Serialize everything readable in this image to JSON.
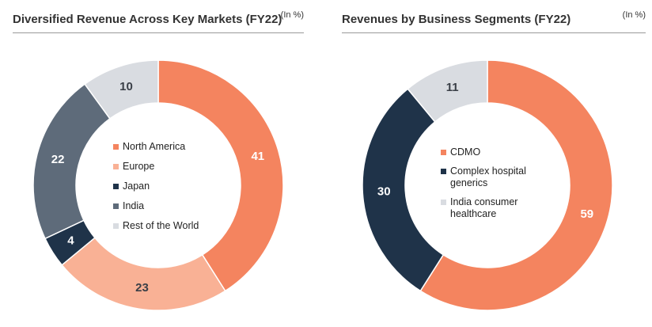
{
  "colors": {
    "orange": "#F4845F",
    "peach": "#F9B195",
    "navy": "#1F3349",
    "slate": "#5E6B7A",
    "light_gray": "#D9DCE1"
  },
  "chart_data": [
    {
      "type": "pie",
      "donut": true,
      "title": "Diversified Revenue Across Key Markets (FY22)",
      "unit": "(In %)",
      "legend_position": "center",
      "slices": [
        {
          "label": "North America",
          "value": 41,
          "color": "#F4845F",
          "label_color": "#ffffff"
        },
        {
          "label": "Europe",
          "value": 23,
          "color": "#F9B195",
          "label_color": "#3a3f47"
        },
        {
          "label": "Japan",
          "value": 4,
          "color": "#1F3349",
          "label_color": "#ffffff"
        },
        {
          "label": "India",
          "value": 22,
          "color": "#5E6B7A",
          "label_color": "#ffffff"
        },
        {
          "label": "Rest of the World",
          "value": 10,
          "color": "#D9DCE1",
          "label_color": "#3a3f47"
        }
      ]
    },
    {
      "type": "pie",
      "donut": true,
      "title": "Revenues by Business Segments (FY22)",
      "unit": "(In %)",
      "legend_position": "center",
      "slices": [
        {
          "label": "CDMO",
          "value": 59,
          "color": "#F4845F",
          "label_color": "#ffffff"
        },
        {
          "label": "Complex hospital generics",
          "value": 30,
          "color": "#1F3349",
          "label_color": "#ffffff"
        },
        {
          "label": "India consumer healthcare",
          "value": 11,
          "color": "#D9DCE1",
          "label_color": "#3a3f47"
        }
      ]
    }
  ]
}
